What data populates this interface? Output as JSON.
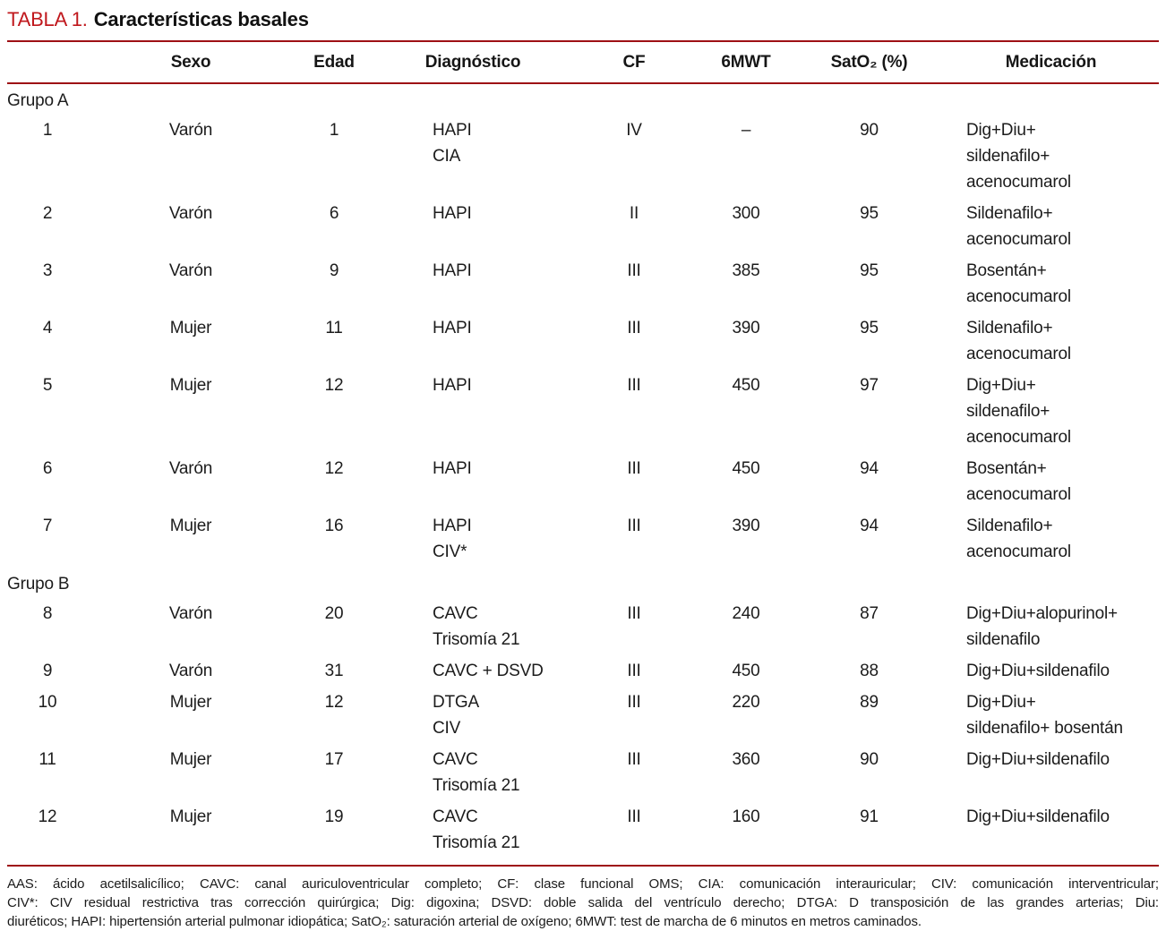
{
  "title": {
    "label": "TABLA 1.",
    "text": "Características basales"
  },
  "colors": {
    "title_red": "#c0181d",
    "rule_red": "#9e1015"
  },
  "table": {
    "columns": [
      "",
      "Sexo",
      "Edad",
      "Diagnóstico",
      "CF",
      "6MWT",
      "SatO₂ (%)",
      "Medicación"
    ],
    "rows": [
      {
        "group": "Grupo A"
      },
      {
        "id": "1",
        "sexo": "Varón",
        "edad": "1",
        "diagnostico": [
          "HAPI",
          "CIA"
        ],
        "cf": "IV",
        "mwt6": "–",
        "sat": "90",
        "medicacion": [
          "Dig+Diu+",
          "sildenafilo+",
          "acenocumarol"
        ]
      },
      {
        "id": "2",
        "sexo": "Varón",
        "edad": "6",
        "diagnostico": [
          "HAPI"
        ],
        "cf": "II",
        "mwt6": "300",
        "sat": "95",
        "medicacion": [
          "Sildenafilo+",
          "acenocumarol"
        ]
      },
      {
        "id": "3",
        "sexo": "Varón",
        "edad": "9",
        "diagnostico": [
          "HAPI"
        ],
        "cf": "III",
        "mwt6": "385",
        "sat": "95",
        "medicacion": [
          "Bosentán+",
          "acenocumarol"
        ]
      },
      {
        "id": "4",
        "sexo": "Mujer",
        "edad": "11",
        "diagnostico": [
          "HAPI"
        ],
        "cf": "III",
        "mwt6": "390",
        "sat": "95",
        "medicacion": [
          "Sildenafilo+",
          "acenocumarol"
        ]
      },
      {
        "id": "5",
        "sexo": "Mujer",
        "edad": "12",
        "diagnostico": [
          "HAPI"
        ],
        "cf": "III",
        "mwt6": "450",
        "sat": "97",
        "medicacion": [
          "Dig+Diu+",
          "sildenafilo+",
          "acenocumarol"
        ]
      },
      {
        "id": "6",
        "sexo": "Varón",
        "edad": "12",
        "diagnostico": [
          "HAPI"
        ],
        "cf": "III",
        "mwt6": "450",
        "sat": "94",
        "medicacion": [
          "Bosentán+",
          "acenocumarol"
        ]
      },
      {
        "id": "7",
        "sexo": "Mujer",
        "edad": "16",
        "diagnostico": [
          "HAPI",
          "CIV*"
        ],
        "cf": "III",
        "mwt6": "390",
        "sat": "94",
        "medicacion": [
          "Sildenafilo+",
          "acenocumarol"
        ]
      },
      {
        "group": "Grupo B"
      },
      {
        "id": "8",
        "sexo": "Varón",
        "edad": "20",
        "diagnostico": [
          "CAVC",
          "Trisomía 21"
        ],
        "cf": "III",
        "mwt6": "240",
        "sat": "87",
        "medicacion": [
          "Dig+Diu+alopurinol+",
          "sildenafilo"
        ]
      },
      {
        "id": "9",
        "sexo": "Varón",
        "edad": "31",
        "diagnostico": [
          "CAVC + DSVD"
        ],
        "cf": "III",
        "mwt6": "450",
        "sat": "88",
        "medicacion": [
          "Dig+Diu+sildenafilo"
        ]
      },
      {
        "id": "10",
        "sexo": "Mujer",
        "edad": "12",
        "diagnostico": [
          "DTGA",
          "CIV"
        ],
        "cf": "III",
        "mwt6": "220",
        "sat": "89",
        "medicacion": [
          "Dig+Diu+",
          "sildenafilo+ bosentán"
        ]
      },
      {
        "id": "11",
        "sexo": "Mujer",
        "edad": "17",
        "diagnostico": [
          "CAVC",
          "Trisomía 21"
        ],
        "cf": "III",
        "mwt6": "360",
        "sat": "90",
        "medicacion": [
          "Dig+Diu+sildenafilo"
        ]
      },
      {
        "id": "12",
        "sexo": "Mujer",
        "edad": "19",
        "diagnostico": [
          "CAVC",
          "Trisomía 21"
        ],
        "cf": "III",
        "mwt6": "160",
        "sat": "91",
        "medicacion": [
          "Dig+Diu+sildenafilo"
        ]
      }
    ]
  },
  "footnote": {
    "lines": [
      "AAS: ácido acetilsalicílico; CAVC: canal auriculoventricular completo; CF: clase funcional OMS; CIA: comunicación interauricular; CIV: comunicación interventricular;",
      "CIV*: CIV residual restrictiva tras corrección quirúrgica; Dig: digoxina; DSVD: doble salida del ventrículo derecho; DTGA: D transposición de las grandes arterias; Diu:",
      "diuréticos; HAPI: hipertensión arterial pulmonar idiopática; SatO₂: saturación arterial de oxígeno; 6MWT: test de marcha de 6 minutos en metros caminados."
    ]
  }
}
